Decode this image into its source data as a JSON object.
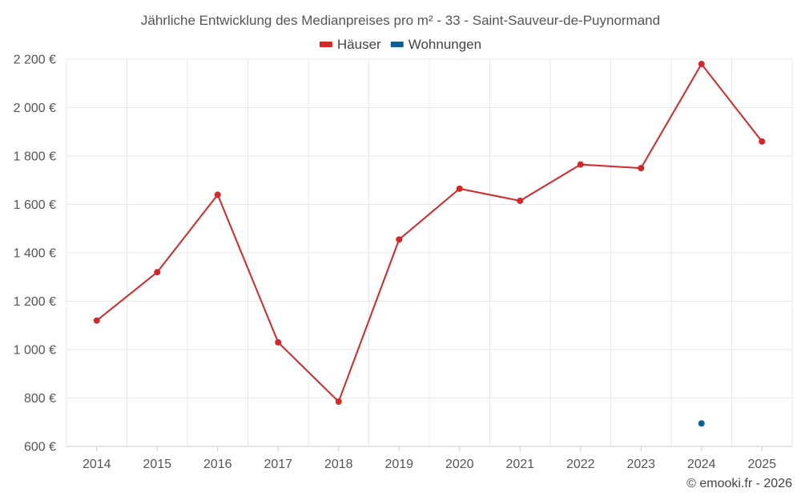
{
  "chart_data": {
    "type": "line",
    "title": "Jährliche Entwicklung des Medianpreises pro m² - 33 - Saint-Sauveur-de-Puynormand",
    "categories": [
      "2014",
      "2015",
      "2016",
      "2017",
      "2018",
      "2019",
      "2020",
      "2021",
      "2022",
      "2023",
      "2024",
      "2025"
    ],
    "ylim": [
      600,
      2200
    ],
    "yticks": [
      600,
      800,
      1000,
      1200,
      1400,
      1600,
      1800,
      2000,
      2200
    ],
    "ytick_labels": [
      "600 €",
      "800 €",
      "1 000 €",
      "1 200 €",
      "1 400 €",
      "1 600 €",
      "1 800 €",
      "2 000 €",
      "2 200 €"
    ],
    "legend_position": "top-center",
    "grid": true,
    "series": [
      {
        "name": "Häuser",
        "color": "#d62728",
        "values": [
          1120,
          1320,
          1640,
          1030,
          785,
          1455,
          1665,
          1615,
          1765,
          1750,
          2180,
          1860
        ]
      },
      {
        "name": "Wohnungen",
        "color": "#0e5f97",
        "values": [
          null,
          null,
          null,
          null,
          null,
          null,
          null,
          null,
          null,
          null,
          695,
          null
        ]
      }
    ]
  },
  "credit": "© emooki.fr - 2026"
}
